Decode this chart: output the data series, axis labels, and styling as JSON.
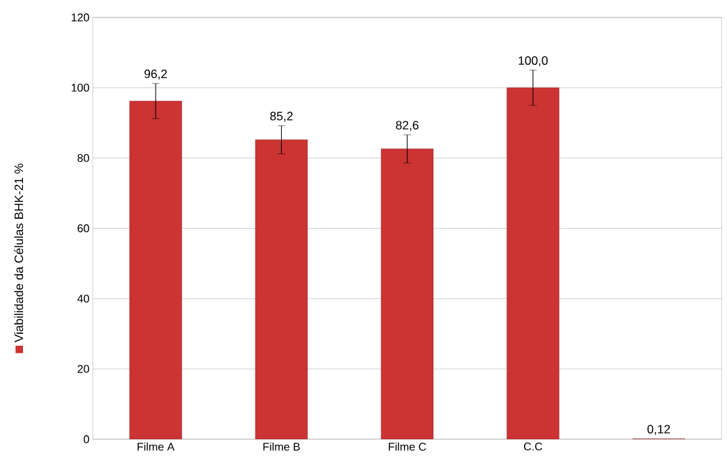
{
  "chart_data": {
    "type": "bar",
    "categories": [
      "Filme A",
      "Filme B",
      "Filme C",
      "C.C",
      null
    ],
    "series": [
      {
        "name": "Viabilidade da Células BHK-21  %",
        "color": "#cc3333",
        "values": [
          96.2,
          85.2,
          82.6,
          100.0,
          0.12
        ],
        "errors": [
          5,
          4,
          4,
          5,
          null
        ],
        "value_labels": [
          "96,2",
          "85,2",
          "82,6",
          "100,0",
          "0,12"
        ]
      }
    ],
    "ylim": [
      0,
      120
    ],
    "yticks": [
      0,
      20,
      40,
      60,
      80,
      100,
      120
    ],
    "grid": "y",
    "legend": "left"
  }
}
